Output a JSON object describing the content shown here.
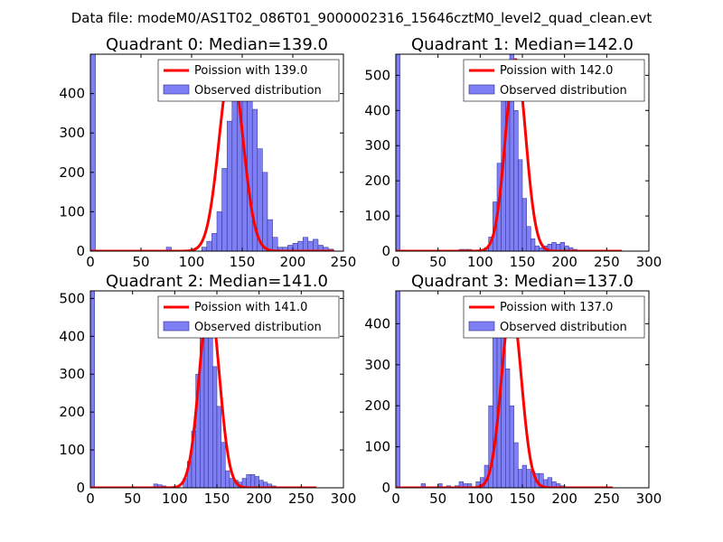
{
  "figure": {
    "suptitle": "Data file: modeM0/AS1T02_086T01_9000002316_15646cztM0_level2_quad_clean.evt"
  },
  "colors": {
    "hist_fill": "#7f7ff5",
    "hist_edge": "#2a2a8a",
    "poisson_line": "#ff0000",
    "axes": "#000000",
    "background": "#ffffff"
  },
  "chart_data": [
    {
      "type": "histogram+line",
      "title": "Quadrant 0: Median=139.0",
      "legend": [
        "Poission with 139.0",
        "Observed distribution"
      ],
      "legend_loc": "upper right",
      "xlim": [
        0,
        250
      ],
      "ylim": [
        0,
        500
      ],
      "xticks": [
        0,
        50,
        100,
        150,
        200,
        250
      ],
      "yticks": [
        0,
        100,
        200,
        300,
        400
      ],
      "bin_width": 5,
      "first_bin_start": 0,
      "histogram": [
        500,
        0,
        0,
        0,
        0,
        0,
        0,
        0,
        0,
        0,
        0,
        0,
        0,
        0,
        0,
        10,
        0,
        0,
        0,
        0,
        0,
        0,
        10,
        25,
        45,
        100,
        210,
        330,
        400,
        435,
        460,
        425,
        360,
        260,
        200,
        80,
        35,
        10,
        10,
        15,
        20,
        25,
        35,
        25,
        30,
        15,
        10,
        5,
        0
      ],
      "poisson_mean": 139.0,
      "poisson_peak": 470,
      "poisson_x": [
        0,
        241
      ]
    },
    {
      "type": "histogram+line",
      "title": "Quadrant 1: Median=142.0",
      "legend": [
        "Poission with 142.0",
        "Observed distribution"
      ],
      "legend_loc": "upper right",
      "xlim": [
        0,
        300
      ],
      "ylim": [
        0,
        560
      ],
      "xticks": [
        0,
        50,
        100,
        150,
        200,
        250,
        300
      ],
      "yticks": [
        0,
        100,
        200,
        300,
        400,
        500
      ],
      "bin_width": 5,
      "first_bin_start": 0,
      "histogram": [
        560,
        0,
        0,
        0,
        0,
        0,
        0,
        0,
        0,
        0,
        0,
        0,
        0,
        0,
        0,
        5,
        5,
        5,
        0,
        0,
        0,
        10,
        40,
        140,
        250,
        435,
        520,
        560,
        400,
        260,
        150,
        70,
        35,
        15,
        10,
        15,
        20,
        25,
        20,
        25,
        15,
        10,
        5,
        0,
        0,
        0,
        0,
        0,
        0,
        0
      ],
      "poisson_mean": 142.0,
      "poisson_peak": 545,
      "poisson_x": [
        0,
        268
      ]
    },
    {
      "type": "histogram+line",
      "title": "Quadrant 2: Median=141.0",
      "legend": [
        "Poission with 141.0",
        "Observed distribution"
      ],
      "legend_loc": "upper right",
      "xlim": [
        0,
        300
      ],
      "ylim": [
        0,
        520
      ],
      "xticks": [
        0,
        50,
        100,
        150,
        200,
        250,
        300
      ],
      "yticks": [
        0,
        100,
        200,
        300,
        400,
        500
      ],
      "bin_width": 5,
      "first_bin_start": 0,
      "histogram": [
        520,
        0,
        0,
        0,
        0,
        0,
        0,
        0,
        0,
        0,
        0,
        0,
        0,
        0,
        0,
        10,
        8,
        5,
        0,
        0,
        0,
        0,
        25,
        70,
        150,
        300,
        435,
        475,
        400,
        320,
        215,
        120,
        45,
        25,
        20,
        15,
        25,
        35,
        35,
        30,
        20,
        15,
        10,
        5,
        0,
        0,
        0,
        0,
        0,
        0
      ],
      "poisson_mean": 141.0,
      "poisson_peak": 495,
      "poisson_x": [
        0,
        268
      ]
    },
    {
      "type": "histogram+line",
      "title": "Quadrant 3: Median=137.0",
      "legend": [
        "Poission with 137.0",
        "Observed distribution"
      ],
      "legend_loc": "upper right",
      "xlim": [
        0,
        300
      ],
      "ylim": [
        0,
        480
      ],
      "xticks": [
        0,
        50,
        100,
        150,
        200,
        250,
        300
      ],
      "yticks": [
        0,
        100,
        200,
        300,
        400
      ],
      "bin_width": 5,
      "first_bin_start": 0,
      "histogram": [
        480,
        0,
        0,
        0,
        0,
        0,
        10,
        0,
        0,
        0,
        10,
        0,
        5,
        0,
        5,
        15,
        10,
        10,
        0,
        15,
        25,
        55,
        200,
        410,
        440,
        390,
        290,
        200,
        110,
        45,
        55,
        45,
        40,
        35,
        35,
        20,
        25,
        15,
        10,
        5,
        0,
        0,
        0,
        0,
        0,
        0,
        0,
        0,
        0,
        0
      ],
      "poisson_mean": 137.0,
      "poisson_peak": 445,
      "poisson_x": [
        0,
        257
      ]
    }
  ]
}
